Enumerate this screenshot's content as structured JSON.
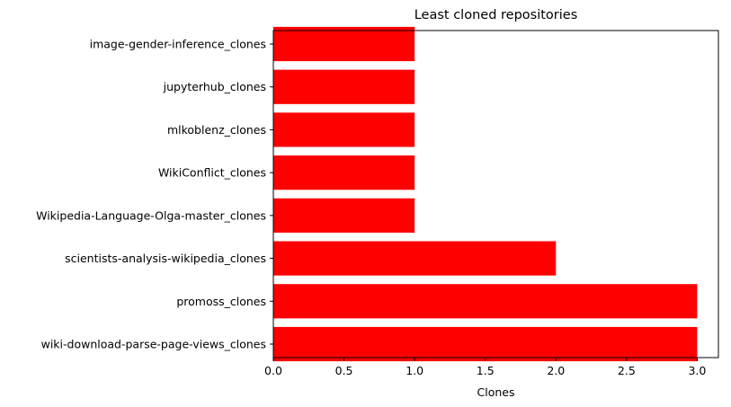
{
  "chart_data": {
    "type": "bar",
    "orientation": "horizontal",
    "title": "Least cloned repositories",
    "xlabel": "Clones",
    "ylabel": "",
    "categories": [
      "image-gender-inference_clones",
      "jupyterhub_clones",
      "mlkoblenz_clones",
      "WikiConflict_clones",
      "Wikipedia-Language-Olga-master_clones",
      "scientists-analysis-wikipedia_clones",
      "promoss_clones",
      "wiki-download-parse-page-views_clones"
    ],
    "values": [
      1,
      1,
      1,
      1,
      1,
      2,
      3,
      3
    ],
    "xlim": [
      0,
      3.15
    ],
    "xticks": [
      "0.0",
      "0.5",
      "1.0",
      "1.5",
      "2.0",
      "2.5",
      "3.0"
    ],
    "bar_color": "#ff0000",
    "grid": false,
    "legend": "none"
  }
}
